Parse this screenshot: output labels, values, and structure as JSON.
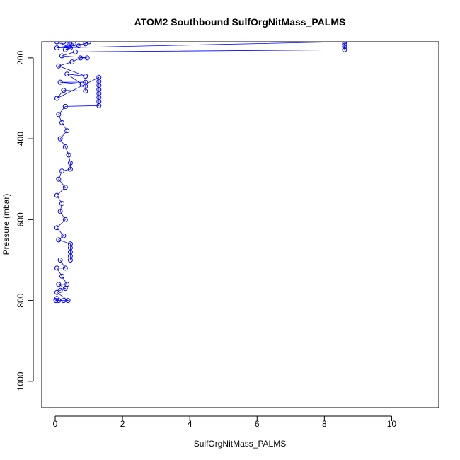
{
  "chart_data": {
    "type": "scatter",
    "title": "ATOM2 Southbound SulfOrgNitMass_PALMS",
    "xlabel": "SulfOrgNitMass_PALMS",
    "ylabel": "Pressure (mbar)",
    "xlim": [
      -0.4,
      11.4
    ],
    "ylim": [
      160,
      1065
    ],
    "y_reversed": true,
    "grid": false,
    "legend": "none",
    "point_marker": "open-circle",
    "connected_with_lines": true,
    "series_color": "#0000ff",
    "x_ticks": [
      0,
      2,
      4,
      6,
      8,
      10
    ],
    "x_tick_labels": [
      "0",
      "2",
      "4",
      "6",
      "8",
      "10"
    ],
    "y_ticks": [
      200,
      400,
      600,
      800,
      1000
    ],
    "y_tick_labels": [
      "200",
      "400",
      "600",
      "800",
      "1000"
    ],
    "series": [
      {
        "points": [
          [
            0.02,
            800
          ],
          [
            0.05,
            795
          ],
          [
            0.1,
            800
          ],
          [
            0.25,
            800
          ],
          [
            0.38,
            800
          ],
          [
            0.05,
            780
          ],
          [
            0.15,
            775
          ],
          [
            0.3,
            770
          ],
          [
            0.1,
            760
          ],
          [
            0.35,
            760
          ],
          [
            0.2,
            740
          ],
          [
            0.05,
            720
          ],
          [
            0.3,
            720
          ],
          [
            0.15,
            700
          ],
          [
            0.45,
            700
          ],
          [
            0.45,
            690
          ],
          [
            0.45,
            680
          ],
          [
            0.45,
            670
          ],
          [
            0.45,
            660
          ],
          [
            0.1,
            650
          ],
          [
            0.25,
            640
          ],
          [
            0.05,
            620
          ],
          [
            0.3,
            600
          ],
          [
            0.15,
            580
          ],
          [
            0.2,
            560
          ],
          [
            0.05,
            540
          ],
          [
            0.3,
            520
          ],
          [
            0.1,
            500
          ],
          [
            0.2,
            480
          ],
          [
            0.45,
            475
          ],
          [
            0.45,
            460
          ],
          [
            0.4,
            440
          ],
          [
            0.3,
            420
          ],
          [
            0.15,
            400
          ],
          [
            0.35,
            380
          ],
          [
            0.2,
            360
          ],
          [
            0.1,
            340
          ],
          [
            0.3,
            320
          ],
          [
            1.3,
            318
          ],
          [
            1.3,
            308
          ],
          [
            1.3,
            298
          ],
          [
            1.3,
            288
          ],
          [
            1.3,
            278
          ],
          [
            1.3,
            268
          ],
          [
            1.3,
            258
          ],
          [
            1.3,
            248
          ],
          [
            0.05,
            300
          ],
          [
            0.25,
            280
          ],
          [
            0.9,
            282
          ],
          [
            0.9,
            270
          ],
          [
            0.9,
            260
          ],
          [
            0.15,
            260
          ],
          [
            0.8,
            265
          ],
          [
            0.35,
            240
          ],
          [
            0.9,
            245
          ],
          [
            0.1,
            220
          ],
          [
            0.5,
            210
          ],
          [
            0.75,
            200
          ],
          [
            0.95,
            200
          ],
          [
            0.2,
            195
          ],
          [
            0.6,
            185
          ],
          [
            8.6,
            180
          ],
          [
            8.6,
            172
          ],
          [
            8.6,
            166
          ],
          [
            8.6,
            160
          ],
          [
            0.05,
            175
          ],
          [
            0.4,
            170
          ],
          [
            0.9,
            165
          ],
          [
            1.0,
            160
          ],
          [
            0.7,
            170
          ],
          [
            0.3,
            180
          ],
          [
            0.55,
            165
          ],
          [
            0.25,
            160
          ],
          [
            0.05,
            160
          ],
          [
            0.45,
            175
          ]
        ]
      }
    ]
  }
}
